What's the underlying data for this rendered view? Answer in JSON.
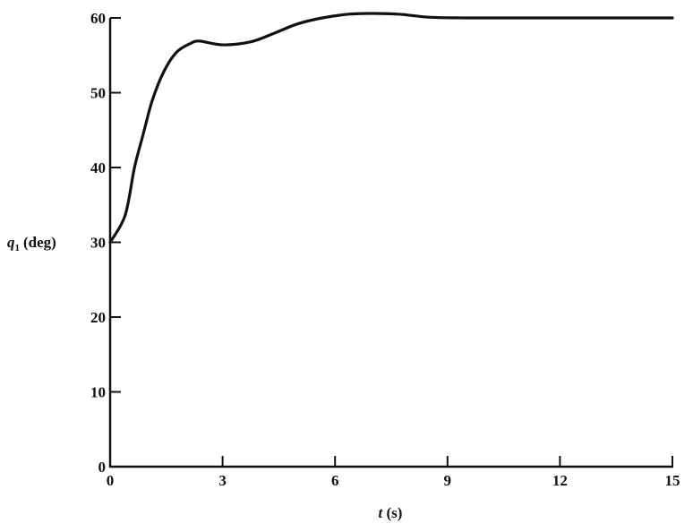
{
  "chart_data": {
    "type": "line",
    "title": "",
    "xlabel_var": "t",
    "xlabel_unit": "(s)",
    "ylabel_var": "q",
    "ylabel_sub": "1",
    "ylabel_unit": "(deg)",
    "xlim": [
      0,
      15
    ],
    "ylim": [
      0,
      60
    ],
    "xticks": [
      0,
      3,
      6,
      9,
      12,
      15
    ],
    "yticks": [
      0,
      10,
      20,
      30,
      40,
      50,
      60
    ],
    "grid": false,
    "line_color": "#111111",
    "series": [
      {
        "x": [
          0,
          0.4,
          0.65,
          0.88,
          1.12,
          1.43,
          1.77,
          2.15,
          2.39,
          3.0,
          3.75,
          4.4,
          5.0,
          5.66,
          6.37,
          7.0,
          7.7,
          8.5,
          9.5,
          11,
          13,
          15
        ],
        "y": [
          30,
          33.6,
          40,
          44.4,
          48.9,
          52.8,
          55.4,
          56.6,
          56.9,
          56.4,
          56.8,
          58,
          59.2,
          60,
          60.5,
          60.6,
          60.5,
          60.1,
          60,
          60,
          60,
          60
        ]
      }
    ]
  }
}
